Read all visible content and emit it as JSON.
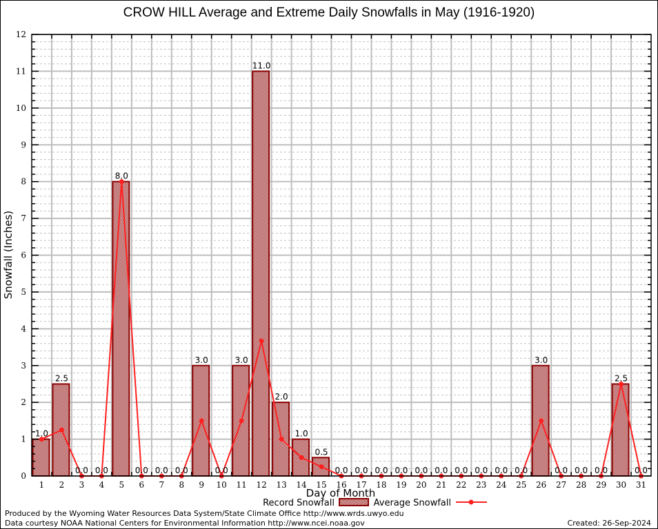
{
  "chart_data": {
    "type": "bar",
    "title": "CROW HILL Average and Extreme Daily Snowfalls in May (1916-1920)",
    "xlabel": "Day of Month",
    "ylabel": "Snowfall (Inches)",
    "ylim": [
      0,
      12
    ],
    "yticks": [
      "0",
      "1",
      "2",
      "3",
      "4",
      "5",
      "6",
      "7",
      "8",
      "9",
      "10",
      "11",
      "12"
    ],
    "grid": true,
    "categories": [
      "1",
      "2",
      "3",
      "4",
      "5",
      "6",
      "7",
      "8",
      "9",
      "10",
      "11",
      "12",
      "13",
      "14",
      "15",
      "16",
      "17",
      "18",
      "19",
      "20",
      "21",
      "22",
      "23",
      "24",
      "25",
      "26",
      "27",
      "28",
      "29",
      "30",
      "31"
    ],
    "series": [
      {
        "name": "Record Snowfall",
        "type": "bar",
        "color": "#8b0000",
        "values": [
          1.0,
          2.5,
          0.0,
          0.0,
          8.0,
          0.0,
          0.0,
          0.0,
          3.0,
          0.0,
          3.0,
          11.0,
          2.0,
          1.0,
          0.5,
          0.0,
          0.0,
          0.0,
          0.0,
          0.0,
          0.0,
          0.0,
          0.0,
          0.0,
          0.0,
          3.0,
          0.0,
          0.0,
          0.0,
          2.5,
          0.0
        ],
        "labels": [
          "1.0",
          "2.5",
          "0.0",
          "0.0",
          "8.0",
          "0.0",
          "0.0",
          "0.0",
          "3.0",
          "0.0",
          "3.0",
          "11.0",
          "2.0",
          "1.0",
          "0.5",
          "0.0",
          "0.0",
          "0.0",
          "0.0",
          "0.0",
          "0.0",
          "0.0",
          "0.0",
          "0.0",
          "0.0",
          "3.0",
          "0.0",
          "0.0",
          "0.0",
          "2.5",
          "0.0"
        ]
      },
      {
        "name": "Average Snowfall",
        "type": "line",
        "color": "#ff2020",
        "values": [
          1.0,
          1.25,
          0.0,
          0.0,
          8.0,
          0.0,
          0.0,
          0.0,
          1.5,
          0.0,
          1.5,
          3.67,
          1.0,
          0.5,
          0.25,
          0.0,
          0.0,
          0.0,
          0.0,
          0.0,
          0.0,
          0.0,
          0.0,
          0.0,
          0.0,
          1.5,
          0.0,
          0.0,
          0.0,
          2.5,
          0.0
        ]
      }
    ],
    "legend": "bottom-center"
  },
  "footer": {
    "produced_by": "Produced by the Wyoming Water Resources Data System/State Climate Office http://www.wrds.uwyo.edu",
    "courtesy": "Data courtesy NOAA National Centers for Environmental Information http://www.ncei.noaa.gov",
    "created": "Created: 26-Sep-2024"
  }
}
